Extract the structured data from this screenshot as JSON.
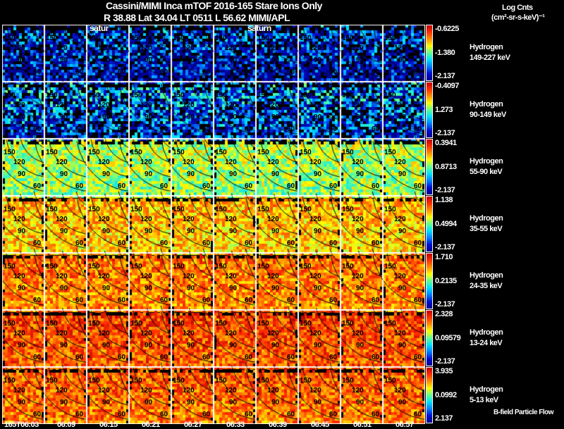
{
  "header": {
    "title": "Cassini/MIMI Inca mTOF  2016-165   Stare   Ions Only",
    "subtitle": "R          38.88 Lat 34.04 LT 0511 L           56.62  MIMI/APL",
    "units_line1": "Log Cnts",
    "units_line2": "(cm²-sr-s-keV)⁻¹"
  },
  "saturn_labels": [
    "satur",
    "saturn"
  ],
  "footer_note": "B-field Particle Flow",
  "chart_data": {
    "type": "heatmap",
    "title": "Cassini/MIMI Inca mTOF 2016-165 Stare Ions Only",
    "time_labels": [
      "165T06:03",
      "06:09",
      "06:15",
      "06:21",
      "06:27",
      "06:33",
      "06:39",
      "06:45",
      "06:51",
      "06:57"
    ],
    "contour_labels": [
      "150",
      "120",
      "90",
      "60"
    ],
    "rows": [
      {
        "species": "Hydrogen",
        "energy": "149-227 keV",
        "max": "-0.6225",
        "mid": "-1.380",
        "min": "-2.137",
        "level": 0.2
      },
      {
        "species": "Hydrogen",
        "energy": "90-149 keV",
        "max": "-0.4097",
        "mid": "1.273",
        "min": "-2.137",
        "level": 0.3
      },
      {
        "species": "Hydrogen",
        "energy": "55-90 keV",
        "max": "0.3941",
        "mid": "0.8713",
        "min": "-2.137",
        "level": 0.58
      },
      {
        "species": "Hydrogen",
        "energy": "35-55 keV",
        "max": "1.138",
        "mid": "0.4994",
        "min": "-2.137",
        "level": 0.72
      },
      {
        "species": "Hydrogen",
        "energy": "24-35 keV",
        "max": "1.710",
        "mid": "0.2135",
        "min": "-2.137",
        "level": 0.8
      },
      {
        "species": "Hydrogen",
        "energy": "13-24 keV",
        "max": "2.328",
        "mid": "0.09579",
        "min": "-2.137",
        "level": 0.86
      },
      {
        "species": "Hydrogen",
        "energy": "5-13 keV",
        "max": "3.935",
        "mid": "0.0992",
        "min": "2.137",
        "level": 0.83
      }
    ]
  }
}
